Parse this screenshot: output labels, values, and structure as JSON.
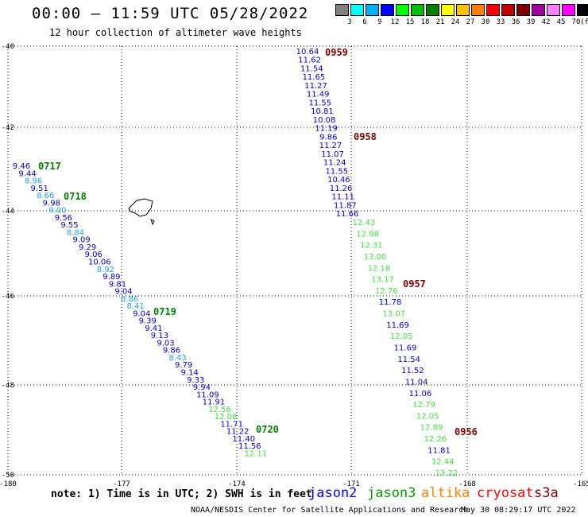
{
  "header": {
    "title": "00:00 – 11:59 UTC 05/28/2022",
    "subtitle": "12 hour collection of altimeter wave heights"
  },
  "scale": {
    "colors": [
      "#808080",
      "#00ffff",
      "#00b0ff",
      "#0000ff",
      "#00ff00",
      "#00c000",
      "#008000",
      "#ffff00",
      "#ffc000",
      "#ff8000",
      "#ff0000",
      "#c00000",
      "#800000",
      "#a000a0",
      "#ff80ff",
      "#ff00ff",
      "#000000"
    ],
    "labels": [
      "3",
      "6",
      "9",
      "12",
      "15",
      "18",
      "21",
      "24",
      "27",
      "30",
      "33",
      "36",
      "39",
      "42",
      "45",
      "70"
    ],
    "unit": "(ft)"
  },
  "axes": {
    "lon_labels": [
      "-180",
      "-177",
      "-174",
      "-171",
      "-168",
      "-165"
    ],
    "lat_labels": [
      "-40",
      "-42",
      "-44",
      "-46",
      "-48",
      "-50"
    ]
  },
  "track_colors": {
    "jason2": "#0000d0",
    "jason3": "#40e040",
    "lightblue": "#20a0e0",
    "label_green": "#008000",
    "label_dark": "#800000"
  },
  "track_labels": [
    {
      "text": "0959",
      "color": "label_dark"
    },
    {
      "text": "0958",
      "color": "label_dark"
    },
    {
      "text": "0957",
      "color": "label_dark"
    },
    {
      "text": "0956",
      "color": "label_dark"
    },
    {
      "text": "0717",
      "color": "label_green"
    },
    {
      "text": "0718",
      "color": "label_green"
    },
    {
      "text": "0719",
      "color": "label_green"
    },
    {
      "text": "0720",
      "color": "label_green"
    }
  ],
  "swh_values": [
    [
      "10.64",
      "jason2"
    ],
    [
      "11.62",
      "jason2"
    ],
    [
      "11.54",
      "jason2"
    ],
    [
      "11.65",
      "jason2"
    ],
    [
      "11.27",
      "jason2"
    ],
    [
      "11.49",
      "jason2"
    ],
    [
      "11.55",
      "jason2"
    ],
    [
      "10.81",
      "jason2"
    ],
    [
      "10.08",
      "jason2"
    ],
    [
      "11.19",
      "jason2"
    ],
    [
      "9.86",
      "jason2"
    ],
    [
      "11.27",
      "jason2"
    ],
    [
      "11.07",
      "jason2"
    ],
    [
      "11.24",
      "jason2"
    ],
    [
      "11.55",
      "jason2"
    ],
    [
      "10.46",
      "jason2"
    ],
    [
      "11.26",
      "jason2"
    ],
    [
      "11.11",
      "jason2"
    ],
    [
      "11.87",
      "jason2"
    ],
    [
      "11.66",
      "jason2"
    ],
    [
      "12.43",
      "jason3"
    ],
    [
      "12.98",
      "jason3"
    ],
    [
      "12.31",
      "jason3"
    ],
    [
      "13.00",
      "jason3"
    ],
    [
      "12.18",
      "jason3"
    ],
    [
      "13.17",
      "jason3"
    ],
    [
      "12.76",
      "jason3"
    ],
    [
      "11.78",
      "jason2"
    ],
    [
      "13.07",
      "jason3"
    ],
    [
      "11.69",
      "jason2"
    ],
    [
      "12.05",
      "jason3"
    ],
    [
      "11.69",
      "jason2"
    ],
    [
      "11.54",
      "jason2"
    ],
    [
      "11.52",
      "jason2"
    ],
    [
      "11.04",
      "jason2"
    ],
    [
      "11.06",
      "jason2"
    ],
    [
      "12.79",
      "jason3"
    ],
    [
      "12.05",
      "jason3"
    ],
    [
      "12.89",
      "jason3"
    ],
    [
      "12.26",
      "jason3"
    ],
    [
      "11.81",
      "jason2"
    ],
    [
      "12.44",
      "jason3"
    ],
    [
      "13.22",
      "jason3"
    ],
    [
      "9.46",
      "jason2"
    ],
    [
      "9.44",
      "jason2"
    ],
    [
      "8.96",
      "lightblue"
    ],
    [
      "9.51",
      "jason2"
    ],
    [
      "8.66",
      "lightblue"
    ],
    [
      "9.98",
      "jason2"
    ],
    [
      "9.00",
      "lightblue"
    ],
    [
      "9.56",
      "jason2"
    ],
    [
      "9.55",
      "jason2"
    ],
    [
      "8.84",
      "lightblue"
    ],
    [
      "9.09",
      "jason2"
    ],
    [
      "9.29",
      "jason2"
    ],
    [
      "9.06",
      "jason2"
    ],
    [
      "10.06",
      "jason2"
    ],
    [
      "8.92",
      "lightblue"
    ],
    [
      "9.89",
      "jason2"
    ],
    [
      "9.81",
      "jason2"
    ],
    [
      "9.04",
      "jason2"
    ],
    [
      "8.86",
      "lightblue"
    ],
    [
      "8.41",
      "lightblue"
    ],
    [
      "9.04",
      "jason2"
    ],
    [
      "9.39",
      "jason2"
    ],
    [
      "9.41",
      "jason2"
    ],
    [
      "9.13",
      "jason2"
    ],
    [
      "9.03",
      "jason2"
    ],
    [
      "9.86",
      "jason2"
    ],
    [
      "8.43",
      "lightblue"
    ],
    [
      "9.79",
      "jason2"
    ],
    [
      "9.14",
      "jason2"
    ],
    [
      "9.33",
      "jason2"
    ],
    [
      "9.94",
      "jason2"
    ],
    [
      "11.09",
      "jason2"
    ],
    [
      "11.91",
      "jason2"
    ],
    [
      "12.56",
      "jason3"
    ],
    [
      "12.08",
      "jason3"
    ],
    [
      "11.71",
      "jason2"
    ],
    [
      "11.22",
      "jason2"
    ],
    [
      "11.40",
      "jason2"
    ],
    [
      "11.56",
      "jason2"
    ],
    [
      "12.11",
      "jason3"
    ]
  ],
  "footer": {
    "note": "note: 1) Time is in UTC; 2) SWH is in feet",
    "legend": [
      {
        "name": "jason2",
        "color": "#0000ff"
      },
      {
        "name": "jason3",
        "color": "#00a000"
      },
      {
        "name": "altika",
        "color": "#ff8000"
      },
      {
        "name": "cryosat",
        "color": "#ff0000"
      },
      {
        "name": "s3a",
        "color": "#800000"
      }
    ],
    "credit": "NOAA/NESDIS Center for Satellite Applications and Research",
    "timestamp": "May 30 08:29:17 UTC 2022"
  }
}
